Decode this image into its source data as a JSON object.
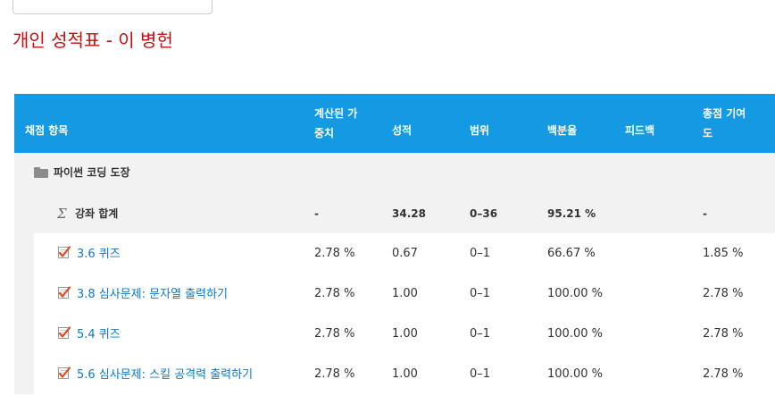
{
  "report": {
    "title": "개인 성적표 - 이 병헌"
  },
  "colors": {
    "title": "#c20f0f",
    "header_bg": "#139ae2",
    "link": "#0a78c8",
    "row_shade": "#f2f2f2"
  },
  "table": {
    "headers": {
      "item": "채점 항목",
      "weight_line1": "계산된 가",
      "weight_line2": "중치",
      "grade": "성적",
      "range": "범위",
      "percentage": "백분율",
      "feedback": "피드백",
      "contribution_line1": "총점 기여",
      "contribution_line2": "도"
    },
    "category": {
      "icon": "folder-icon",
      "name": "파이썬 코딩 도장"
    },
    "course_total": {
      "icon": "sigma-icon",
      "name": "강좌 합계",
      "weight": "-",
      "grade": "34.28",
      "range": "0–36",
      "percentage": "95.21 %",
      "feedback": "",
      "contribution": "-"
    },
    "items": [
      {
        "icon": "quiz-icon",
        "name": "3.6 퀴즈",
        "weight": "2.78 %",
        "grade": "0.67",
        "range": "0–1",
        "percentage": "66.67 %",
        "feedback": "",
        "contribution": "1.85 %"
      },
      {
        "icon": "quiz-icon",
        "name": "3.8 심사문제: 문자열 출력하기",
        "weight": "2.78 %",
        "grade": "1.00",
        "range": "0–1",
        "percentage": "100.00 %",
        "feedback": "",
        "contribution": "2.78 %"
      },
      {
        "icon": "quiz-icon",
        "name": "5.4 퀴즈",
        "weight": "2.78 %",
        "grade": "1.00",
        "range": "0–1",
        "percentage": "100.00 %",
        "feedback": "",
        "contribution": "2.78 %"
      },
      {
        "icon": "quiz-icon",
        "name": "5.6 심사문제: 스킬 공격력 출력하기",
        "weight": "2.78 %",
        "grade": "1.00",
        "range": "0–1",
        "percentage": "100.00 %",
        "feedback": "",
        "contribution": "2.78 %"
      }
    ]
  }
}
